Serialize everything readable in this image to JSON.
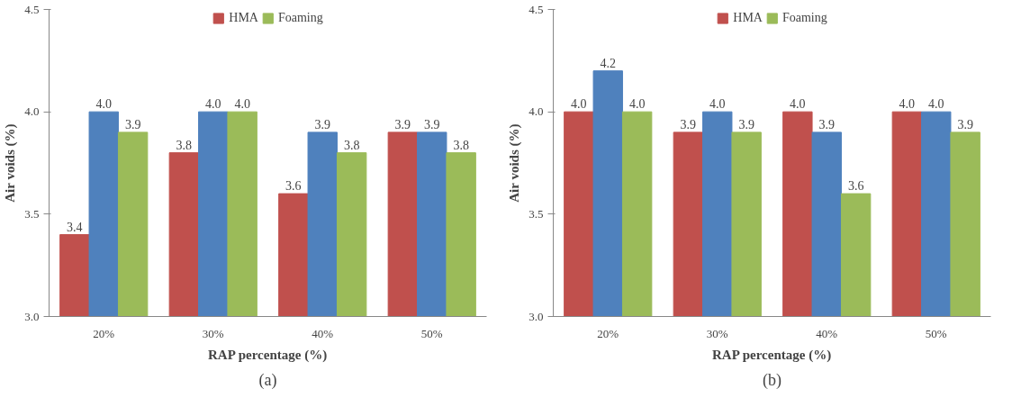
{
  "chart_data": [
    {
      "type": "bar",
      "xlabel": "RAP percentage (%)",
      "ylabel": "Air voids (%)",
      "annotations": [
        "(a)"
      ],
      "categories": [
        "20%",
        "30%",
        "40%",
        "50%"
      ],
      "series": [
        {
          "name": "HMA",
          "color": "#c0504d",
          "values": [
            3.4,
            3.8,
            3.6,
            3.9
          ],
          "value_labels": [
            "3.4",
            "3.8",
            "3.6",
            "3.9"
          ]
        },
        {
          "color": "#4f81bd",
          "values": [
            4.0,
            4.0,
            3.9,
            3.9
          ],
          "value_labels": [
            "4.0",
            "4.0",
            "3.9",
            "3.9"
          ]
        },
        {
          "name": "Foaming",
          "color": "#9bbb59",
          "values": [
            3.9,
            4.0,
            3.8,
            3.8
          ],
          "value_labels": [
            "3.9",
            "4.0",
            "3.8",
            "3.8"
          ]
        }
      ],
      "ylim": [
        3.0,
        4.5
      ],
      "yticks": [
        {
          "value": 3.0,
          "label": "3.0"
        },
        {
          "value": 3.5,
          "label": "3.5"
        },
        {
          "value": 4.0,
          "label": "4.0"
        },
        {
          "value": 4.5,
          "label": "4.5"
        }
      ],
      "grid": false,
      "legend": "top"
    },
    {
      "type": "bar",
      "xlabel": "RAP percentage (%)",
      "ylabel": "Air voids (%)",
      "annotations": [
        "(b)"
      ],
      "categories": [
        "20%",
        "30%",
        "40%",
        "50%"
      ],
      "series": [
        {
          "name": "HMA",
          "color": "#c0504d",
          "values": [
            4.0,
            3.9,
            4.0,
            4.0
          ],
          "value_labels": [
            "4.0",
            "3.9",
            "4.0",
            "4.0"
          ]
        },
        {
          "color": "#4f81bd",
          "values": [
            4.2,
            4.0,
            3.9,
            4.0
          ],
          "value_labels": [
            "4.2",
            "4.0",
            "3.9",
            "4.0"
          ]
        },
        {
          "name": "Foaming",
          "color": "#9bbb59",
          "values": [
            4.0,
            3.9,
            3.6,
            3.9
          ],
          "value_labels": [
            "4.0",
            "3.9",
            "3.6",
            "3.9"
          ]
        }
      ],
      "ylim": [
        3.0,
        4.5
      ],
      "yticks": [
        {
          "value": 3.0,
          "label": "3.0"
        },
        {
          "value": 3.5,
          "label": "3.5"
        },
        {
          "value": 4.0,
          "label": "4.0"
        },
        {
          "value": 4.5,
          "label": "4.5"
        }
      ],
      "grid": false,
      "legend": "top"
    }
  ]
}
